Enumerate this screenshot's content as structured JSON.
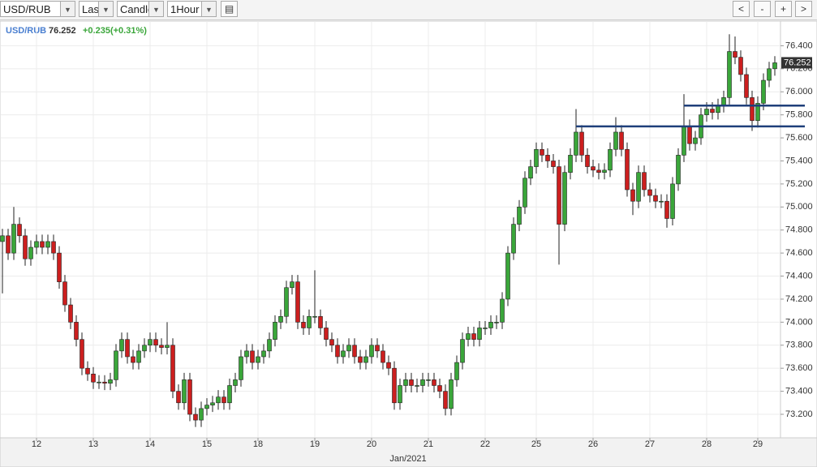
{
  "toolbar": {
    "symbol": "USD/RUB",
    "price_type": "Last",
    "chart_type": "Candle",
    "interval": "1Hour",
    "buttons": [
      "<",
      "-",
      "+",
      ">"
    ]
  },
  "legend": {
    "change": "+0.235(+0.31%)"
  },
  "chart_data": {
    "type": "candlestick",
    "categories": [
      null,
      null,
      null,
      null,
      null,
      null,
      "12",
      null,
      null,
      null,
      null,
      null,
      null,
      null,
      null,
      null,
      "13",
      null,
      null,
      null,
      null,
      null,
      null,
      null,
      null,
      null,
      "14",
      null,
      null,
      null,
      null,
      null,
      null,
      null,
      null,
      null,
      "15",
      null,
      null,
      null,
      null,
      null,
      null,
      null,
      null,
      "18",
      null,
      null,
      null,
      null,
      null,
      null,
      null,
      null,
      null,
      "19",
      null,
      null,
      null,
      null,
      null,
      null,
      null,
      null,
      null,
      "20",
      null,
      null,
      null,
      null,
      null,
      null,
      null,
      null,
      null,
      "21",
      null,
      null,
      null,
      null,
      null,
      null,
      null,
      null,
      null,
      "22",
      null,
      null,
      null,
      null,
      null,
      null,
      null,
      null,
      "25",
      null,
      null,
      null,
      null,
      null,
      null,
      null,
      null,
      null,
      "26",
      null,
      null,
      null,
      null,
      null,
      null,
      null,
      null,
      null,
      "27",
      null,
      null,
      null,
      null,
      null,
      null,
      null,
      null,
      null,
      "28",
      null,
      null,
      null,
      null,
      null,
      null,
      null,
      null,
      "29",
      null,
      null,
      null
    ],
    "open": [
      74.7,
      74.75,
      74.6,
      74.85,
      74.75,
      74.55,
      74.65,
      74.7,
      74.65,
      74.7,
      74.6,
      74.35,
      74.15,
      74.0,
      73.85,
      73.6,
      73.55,
      73.48,
      73.48,
      73.47,
      73.5,
      73.75,
      73.85,
      73.7,
      73.65,
      73.75,
      73.8,
      73.85,
      73.8,
      73.78,
      73.8,
      73.4,
      73.3,
      73.5,
      73.2,
      73.15,
      73.25,
      73.28,
      73.3,
      73.35,
      73.3,
      73.45,
      73.5,
      73.7,
      73.75,
      73.65,
      73.7,
      73.75,
      73.85,
      74.0,
      74.05,
      74.3,
      74.35,
      74.0,
      73.95,
      74.05,
      74.05,
      73.95,
      73.85,
      73.8,
      73.7,
      73.75,
      73.8,
      73.7,
      73.65,
      73.7,
      73.8,
      73.75,
      73.65,
      73.6,
      73.3,
      73.45,
      73.5,
      73.45,
      73.45,
      73.5,
      73.5,
      73.45,
      73.4,
      73.25,
      73.5,
      73.65,
      73.85,
      73.9,
      73.85,
      73.95,
      73.95,
      74.0,
      74.0,
      74.2,
      74.6,
      74.85,
      75.0,
      75.25,
      75.35,
      75.5,
      75.45,
      75.4,
      75.35,
      74.85,
      75.3,
      75.45,
      75.65,
      75.45,
      75.35,
      75.32,
      75.3,
      75.32,
      75.5,
      75.65,
      75.5,
      75.15,
      75.05,
      75.3,
      75.15,
      75.1,
      75.05,
      75.05,
      74.9,
      75.2,
      75.45,
      75.7,
      75.55,
      75.6,
      75.8,
      75.85,
      75.82,
      75.88,
      75.95,
      76.35,
      76.3,
      76.15,
      75.95,
      75.75,
      75.9,
      76.1,
      76.2
    ],
    "high": [
      74.81,
      74.81,
      75.0,
      74.91,
      74.81,
      74.71,
      74.76,
      74.76,
      74.76,
      74.76,
      74.66,
      74.41,
      74.21,
      74.06,
      73.91,
      73.66,
      73.61,
      73.54,
      73.54,
      73.56,
      73.81,
      73.91,
      73.91,
      73.76,
      73.81,
      73.86,
      73.91,
      73.91,
      73.86,
      74.0,
      73.86,
      73.46,
      73.56,
      73.56,
      73.26,
      73.31,
      73.34,
      73.36,
      73.41,
      73.41,
      73.51,
      73.56,
      73.76,
      73.81,
      73.81,
      73.76,
      73.81,
      73.91,
      74.06,
      74.11,
      74.36,
      74.41,
      74.41,
      74.06,
      74.11,
      74.45,
      74.11,
      74.01,
      73.91,
      73.86,
      73.81,
      73.86,
      73.86,
      73.76,
      73.76,
      73.86,
      73.86,
      73.81,
      73.71,
      73.66,
      73.51,
      73.56,
      73.56,
      73.51,
      73.56,
      73.56,
      73.56,
      73.51,
      73.46,
      73.56,
      73.71,
      73.91,
      73.96,
      73.96,
      74.01,
      74.01,
      74.06,
      74.06,
      74.26,
      74.66,
      74.91,
      75.06,
      75.31,
      75.41,
      75.56,
      75.56,
      75.51,
      75.46,
      75.41,
      75.36,
      75.51,
      75.85,
      75.71,
      75.51,
      75.41,
      75.38,
      75.38,
      75.56,
      75.78,
      75.71,
      75.56,
      75.21,
      75.36,
      75.36,
      75.21,
      75.16,
      75.11,
      75.11,
      75.26,
      75.51,
      75.98,
      75.76,
      75.66,
      75.86,
      75.91,
      75.91,
      75.94,
      76.01,
      76.5,
      76.48,
      76.36,
      76.21,
      76.01,
      75.96,
      76.16,
      76.26,
      76.31
    ],
    "low": [
      74.25,
      74.54,
      74.54,
      74.69,
      74.49,
      74.49,
      74.59,
      74.59,
      74.59,
      74.54,
      74.29,
      74.09,
      73.94,
      73.79,
      73.54,
      73.49,
      73.42,
      73.42,
      73.41,
      73.41,
      73.44,
      73.69,
      73.64,
      73.59,
      73.59,
      73.69,
      73.74,
      73.74,
      73.72,
      73.72,
      73.34,
      73.24,
      73.24,
      73.14,
      73.09,
      73.09,
      73.19,
      73.22,
      73.24,
      73.24,
      73.24,
      73.39,
      73.44,
      73.64,
      73.59,
      73.59,
      73.64,
      73.69,
      73.79,
      73.94,
      73.99,
      74.24,
      73.94,
      73.89,
      73.89,
      73.99,
      73.89,
      73.79,
      73.74,
      73.64,
      73.64,
      73.69,
      73.64,
      73.59,
      73.59,
      73.64,
      73.69,
      73.59,
      73.54,
      73.24,
      73.24,
      73.39,
      73.39,
      73.39,
      73.39,
      73.44,
      73.39,
      73.34,
      73.19,
      73.19,
      73.44,
      73.59,
      73.79,
      73.79,
      73.79,
      73.89,
      73.89,
      73.94,
      73.94,
      74.14,
      74.54,
      74.79,
      74.94,
      75.19,
      75.29,
      75.39,
      75.34,
      75.29,
      74.5,
      74.79,
      75.24,
      75.39,
      75.39,
      75.29,
      75.26,
      75.24,
      75.24,
      75.26,
      75.44,
      75.44,
      75.09,
      74.93,
      74.99,
      75.09,
      75.04,
      74.99,
      74.99,
      74.82,
      74.84,
      75.14,
      75.39,
      75.49,
      75.49,
      75.54,
      75.74,
      75.76,
      75.76,
      75.82,
      75.89,
      76.24,
      76.09,
      75.89,
      75.66,
      75.69,
      75.84,
      76.04,
      76.14
    ],
    "close": [
      74.75,
      74.6,
      74.85,
      74.75,
      74.55,
      74.65,
      74.7,
      74.65,
      74.7,
      74.6,
      74.35,
      74.15,
      74.0,
      73.85,
      73.6,
      73.55,
      73.48,
      73.48,
      73.47,
      73.5,
      73.75,
      73.85,
      73.7,
      73.65,
      73.75,
      73.8,
      73.85,
      73.8,
      73.78,
      73.8,
      73.4,
      73.3,
      73.5,
      73.2,
      73.15,
      73.25,
      73.28,
      73.3,
      73.35,
      73.3,
      73.45,
      73.5,
      73.7,
      73.75,
      73.65,
      73.7,
      73.75,
      73.85,
      74.0,
      74.05,
      74.3,
      74.35,
      74.0,
      73.95,
      74.05,
      74.05,
      73.95,
      73.85,
      73.8,
      73.7,
      73.75,
      73.8,
      73.7,
      73.65,
      73.7,
      73.8,
      73.75,
      73.65,
      73.6,
      73.3,
      73.45,
      73.5,
      73.45,
      73.45,
      73.5,
      73.5,
      73.45,
      73.4,
      73.25,
      73.5,
      73.65,
      73.85,
      73.9,
      73.85,
      73.95,
      73.95,
      74.0,
      74.0,
      74.2,
      74.6,
      74.85,
      75.0,
      75.25,
      75.35,
      75.5,
      75.45,
      75.4,
      75.35,
      74.85,
      75.3,
      75.45,
      75.65,
      75.45,
      75.35,
      75.32,
      75.3,
      75.32,
      75.5,
      75.65,
      75.5,
      75.15,
      75.05,
      75.3,
      75.15,
      75.1,
      75.05,
      75.05,
      74.9,
      75.2,
      75.45,
      75.7,
      75.55,
      75.6,
      75.8,
      75.85,
      75.82,
      75.88,
      75.95,
      76.35,
      76.3,
      76.15,
      75.95,
      75.75,
      75.9,
      76.1,
      76.2,
      76.252
    ],
    "up_color": "#3aa63a",
    "down_color": "#cc1f1f",
    "line_color": "#1f3f7a",
    "ylim": [
      73.01,
      76.6
    ],
    "yticks": [
      {
        "value": 76.4,
        "label": "76.400"
      },
      {
        "value": 76.2,
        "label": "76.200"
      },
      {
        "value": 76.0,
        "label": "76.000"
      },
      {
        "value": 75.8,
        "label": "75.800"
      },
      {
        "value": 75.6,
        "label": "75.600"
      },
      {
        "value": 75.4,
        "label": "75.400"
      },
      {
        "value": 75.2,
        "label": "75.200"
      },
      {
        "value": 75.0,
        "label": "75.000"
      },
      {
        "value": 74.8,
        "label": "74.800"
      },
      {
        "value": 74.6,
        "label": "74.600"
      },
      {
        "value": 74.4,
        "label": "74.400"
      },
      {
        "value": 74.2,
        "label": "74.200"
      },
      {
        "value": 74.0,
        "label": "74.000"
      },
      {
        "value": 73.8,
        "label": "73.800"
      },
      {
        "value": 73.6,
        "label": "73.600"
      },
      {
        "value": 73.4,
        "label": "73.400"
      },
      {
        "value": 73.2,
        "label": "73.200"
      }
    ],
    "xlabel": "Jan/2021",
    "grid": true,
    "lines": [
      {
        "value": 75.7,
        "from": 101
      },
      {
        "value": 75.88,
        "from": 120
      }
    ]
  }
}
